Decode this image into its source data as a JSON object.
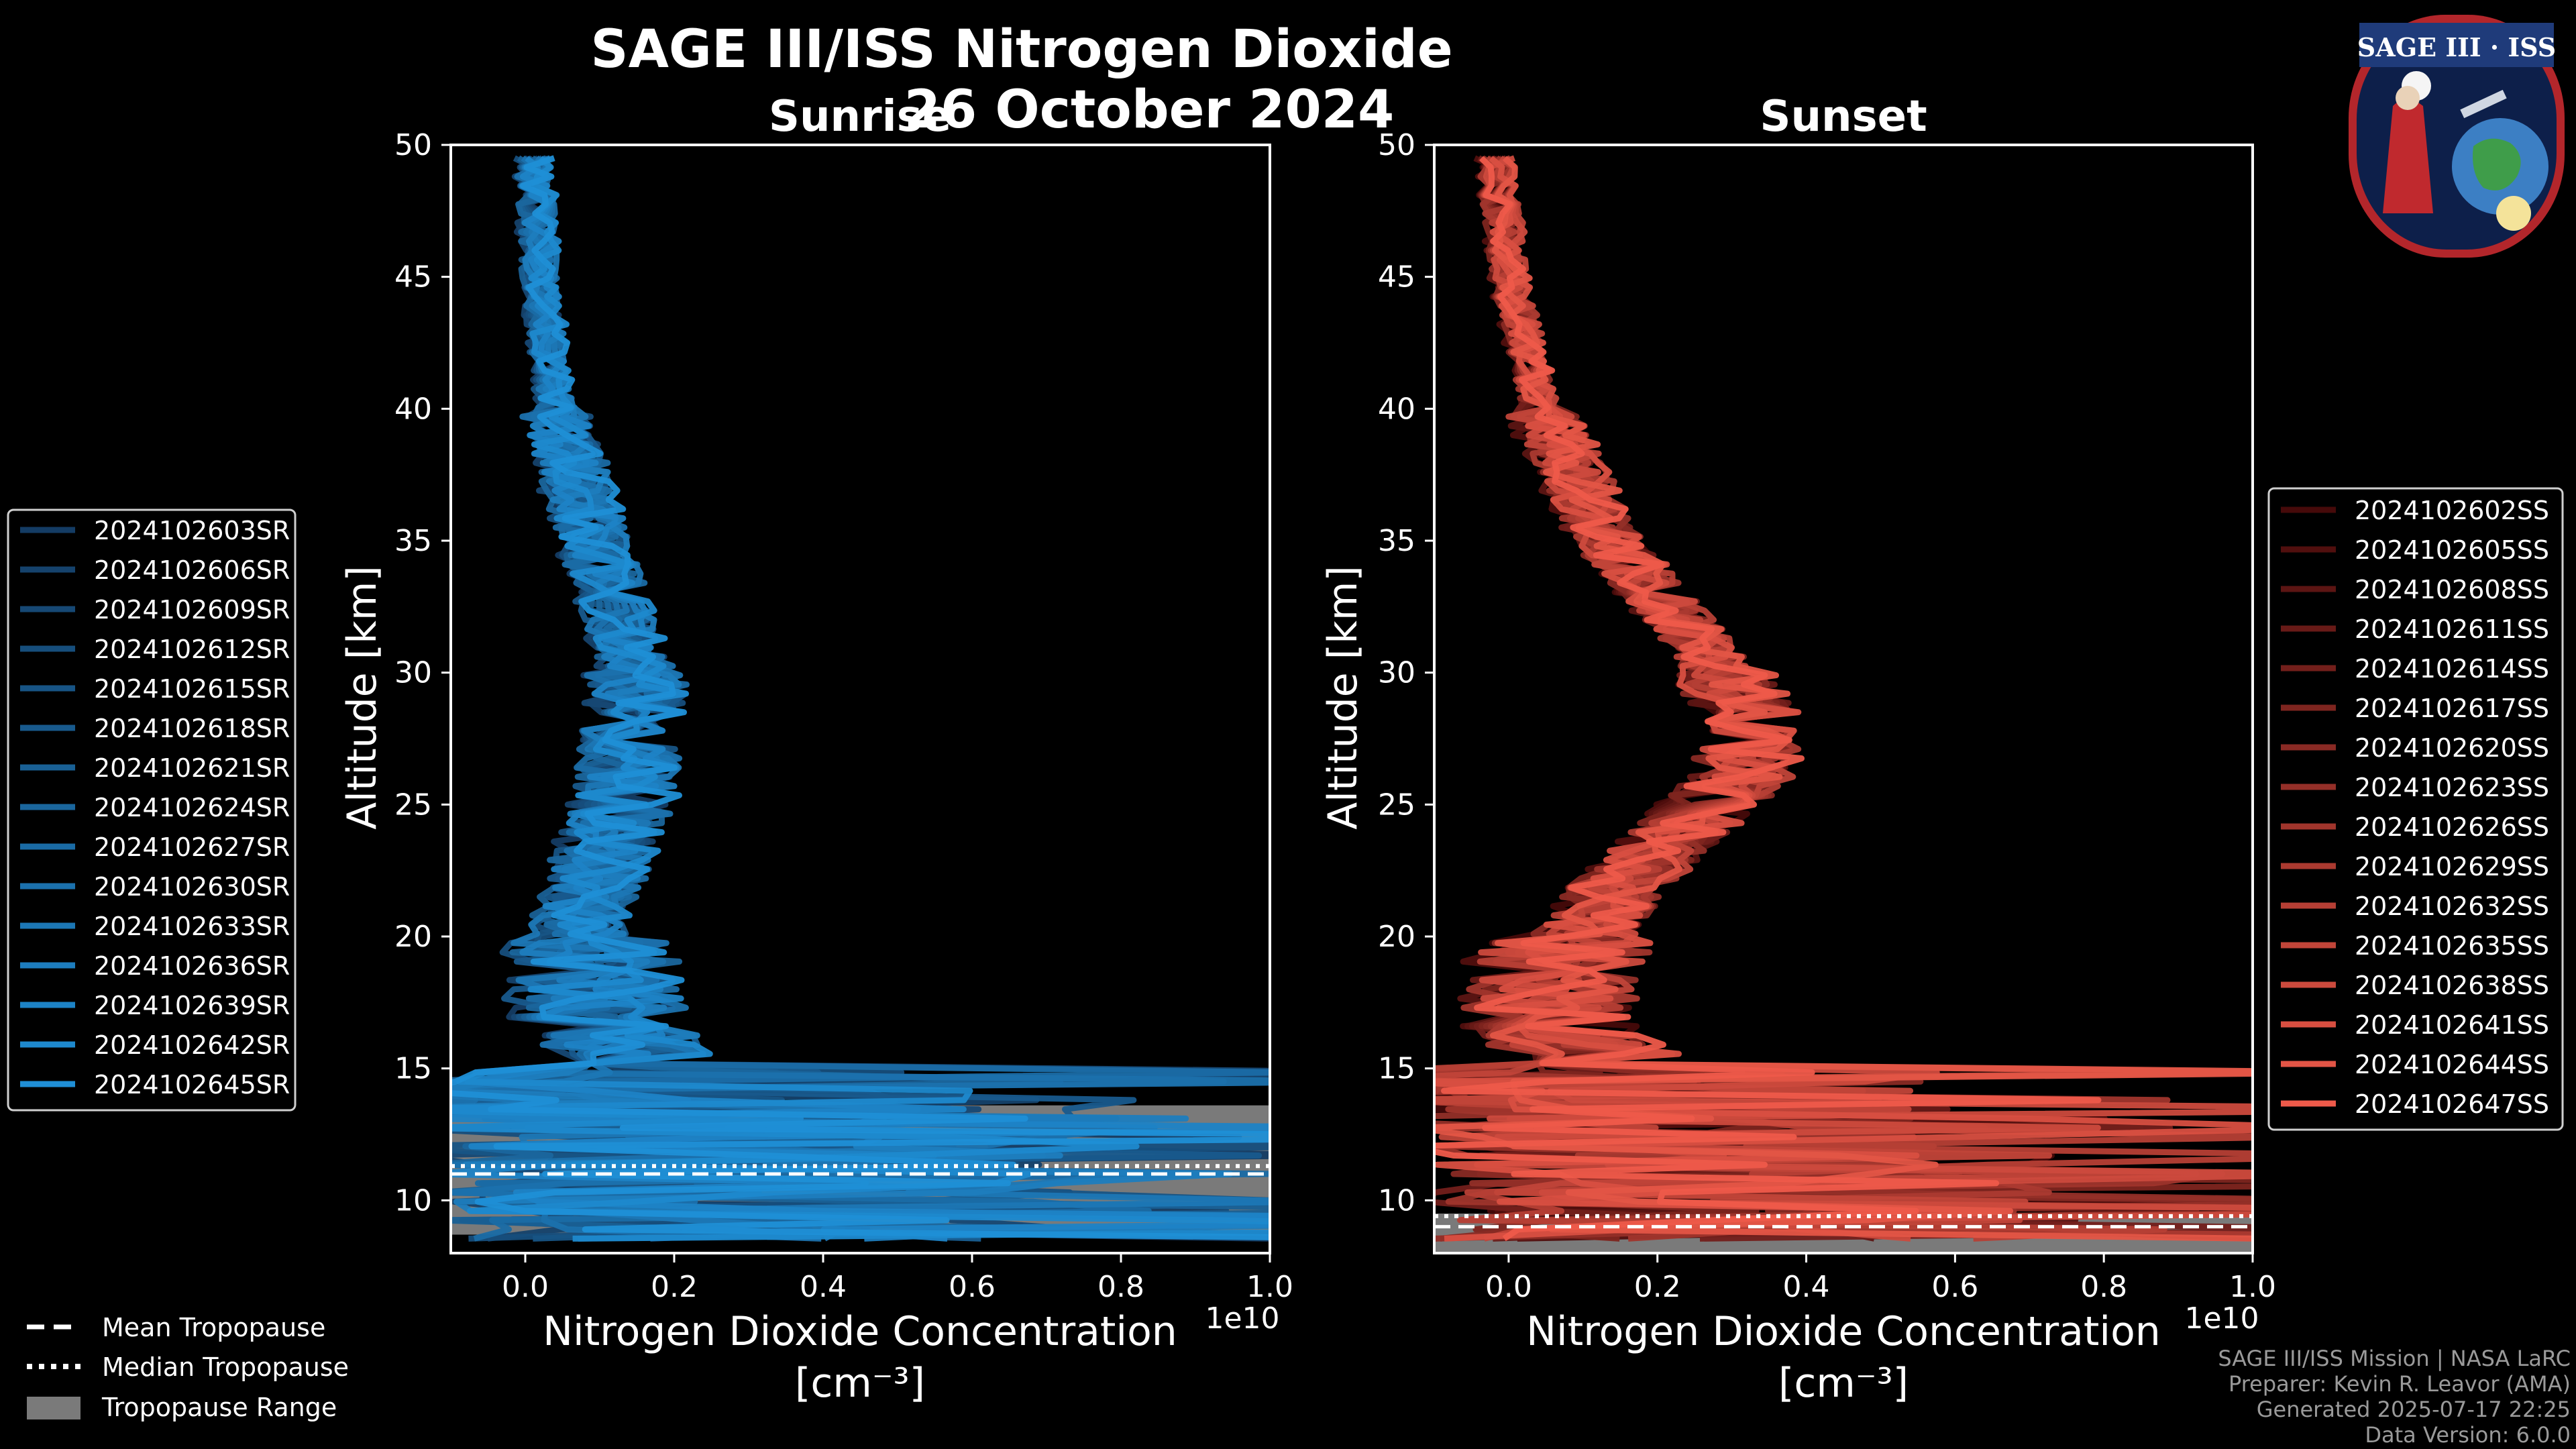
{
  "title": "SAGE III/ISS Nitrogen Dioxide",
  "date": "26 October 2024",
  "logo_text": "SAGE III · ISS",
  "colors": {
    "sunrise": "#1f8fd6",
    "sunset": "#ee5a4a",
    "range": "#7a7a7a",
    "background": "#000000"
  },
  "chart_data": [
    {
      "type": "line",
      "subtitle": "Sunrise",
      "xlabel": "Nitrogen Dioxide Concentration",
      "xlabel_units": "[cm⁻³]",
      "x_scale_label": "1e10",
      "ylabel": "Altitude [km]",
      "xlim": [
        -0.1,
        1.0
      ],
      "ylim": [
        8,
        50
      ],
      "xticks": [
        "0.0",
        "0.2",
        "0.4",
        "0.6",
        "0.8",
        "1.0"
      ],
      "yticks": [
        "10",
        "15",
        "20",
        "25",
        "30",
        "35",
        "40",
        "45",
        "50"
      ],
      "legend_position": "left",
      "series": [
        "2024102603SR",
        "2024102606SR",
        "2024102609SR",
        "2024102612SR",
        "2024102615SR",
        "2024102618SR",
        "2024102621SR",
        "2024102624SR",
        "2024102627SR",
        "2024102630SR",
        "2024102633SR",
        "2024102636SR",
        "2024102639SR",
        "2024102642SR",
        "2024102645SR"
      ],
      "profile_mean": [
        {
          "alt": 49.5,
          "x": 0.0
        },
        {
          "alt": 45,
          "x": 0.01
        },
        {
          "alt": 40,
          "x": 0.03
        },
        {
          "alt": 35,
          "x": 0.08
        },
        {
          "alt": 30,
          "x": 0.14
        },
        {
          "alt": 27,
          "x": 0.13
        },
        {
          "alt": 25,
          "x": 0.12
        },
        {
          "alt": 22,
          "x": 0.08
        },
        {
          "alt": 20,
          "x": 0.06
        },
        {
          "alt": 18,
          "x": 0.06
        },
        {
          "alt": 15,
          "x": 0.1
        },
        {
          "alt": 13,
          "x": 0.2
        },
        {
          "alt": 11,
          "x": 0.25
        },
        {
          "alt": 9.5,
          "x": 0.3
        }
      ],
      "tropopause": {
        "mean": 11.0,
        "median": 11.3,
        "range": [
          8.7,
          13.6
        ]
      }
    },
    {
      "type": "line",
      "subtitle": "Sunset",
      "xlabel": "Nitrogen Dioxide Concentration",
      "xlabel_units": "[cm⁻³]",
      "x_scale_label": "1e10",
      "ylabel": "Altitude [km]",
      "xlim": [
        -0.1,
        1.0
      ],
      "ylim": [
        8,
        50
      ],
      "xticks": [
        "0.0",
        "0.2",
        "0.4",
        "0.6",
        "0.8",
        "1.0"
      ],
      "yticks": [
        "10",
        "15",
        "20",
        "25",
        "30",
        "35",
        "40",
        "45",
        "50"
      ],
      "legend_position": "right",
      "series": [
        "2024102602SS",
        "2024102605SS",
        "2024102608SS",
        "2024102611SS",
        "2024102614SS",
        "2024102617SS",
        "2024102620SS",
        "2024102623SS",
        "2024102626SS",
        "2024102629SS",
        "2024102632SS",
        "2024102635SS",
        "2024102638SS",
        "2024102641SS",
        "2024102644SS",
        "2024102647SS"
      ],
      "profile_mean": [
        {
          "alt": 49.5,
          "x": 0.0
        },
        {
          "alt": 45,
          "x": 0.02
        },
        {
          "alt": 40,
          "x": 0.06
        },
        {
          "alt": 35,
          "x": 0.15
        },
        {
          "alt": 31,
          "x": 0.28
        },
        {
          "alt": 28,
          "x": 0.35
        },
        {
          "alt": 26,
          "x": 0.33
        },
        {
          "alt": 24,
          "x": 0.25
        },
        {
          "alt": 22,
          "x": 0.17
        },
        {
          "alt": 20,
          "x": 0.12
        },
        {
          "alt": 17,
          "x": 0.1
        },
        {
          "alt": 14,
          "x": 0.2
        },
        {
          "alt": 11,
          "x": 0.3
        },
        {
          "alt": 9.3,
          "x": 0.35
        }
      ],
      "tropopause": {
        "mean": 9.0,
        "median": 9.4,
        "range": [
          8.0,
          9.5
        ]
      }
    }
  ],
  "tropopause_legend": [
    "Mean Tropopause",
    "Median Tropopause",
    "Tropopause Range"
  ],
  "footer": [
    "SAGE III/ISS Mission | NASA LaRC",
    "Preparer: Kevin R. Leavor (AMA)",
    "Generated 2025-07-17 22:25",
    "Data Version: 6.0.0"
  ]
}
